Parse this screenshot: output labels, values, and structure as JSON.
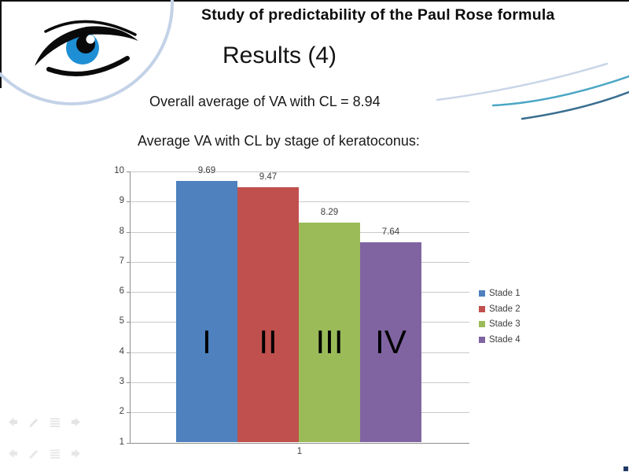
{
  "slide": {
    "header_title": "Study of predictability of the Paul Rose formula",
    "heading": "Results (4)",
    "overall_line": "Overall average of VA with CL = 8.94",
    "chart_caption": "Average VA with CL by stage of keratoconus:"
  },
  "chart_data": {
    "type": "bar",
    "categories": [
      "1"
    ],
    "series": [
      {
        "name": "Stade 1",
        "values": [
          9.69
        ],
        "color": "#4E81BD"
      },
      {
        "name": "Stade 2",
        "values": [
          9.47
        ],
        "color": "#C0504D"
      },
      {
        "name": "Stade 3",
        "values": [
          8.29
        ],
        "color": "#9BBB59"
      },
      {
        "name": "Stade 4",
        "values": [
          7.64
        ],
        "color": "#8064A2"
      }
    ],
    "data_labels": [
      "9.69",
      "9.47",
      "8.29",
      "7.64"
    ],
    "stage_overlays": [
      "I",
      "II",
      "III",
      "IV"
    ],
    "title": "",
    "xlabel": "",
    "ylabel": "",
    "ylim": [
      1,
      10
    ],
    "yticks": [
      1,
      2,
      3,
      4,
      5,
      6,
      7,
      8,
      9,
      10
    ],
    "grid": true,
    "legend_position": "right",
    "data_labels_on": true
  },
  "nav": {
    "icons": [
      "prev-arrow-icon",
      "pen-icon",
      "menu-icon",
      "next-arrow-icon"
    ]
  },
  "colors": {
    "accent_circle": "#C3D2E7",
    "iris_blue": "#1E8FD5",
    "swoosh_light": "#C9D6E8",
    "swoosh_teal": "#4BA6C4",
    "swoosh_dark": "#3A6E8F",
    "corner_mark": "#1F3864",
    "gridline": "#C9C9C9",
    "axis_line": "#8E8E8E"
  }
}
